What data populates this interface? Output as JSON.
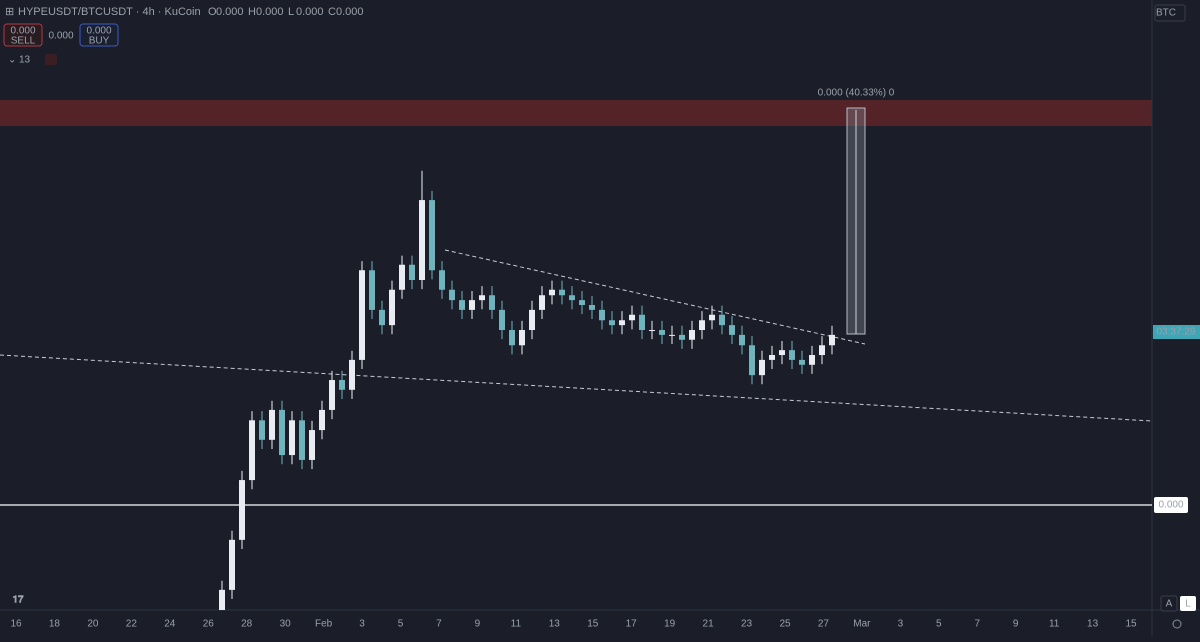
{
  "toolbar": {
    "symbol": "HYPEUSDT/BTCUSDT · 4h · KuCoin",
    "ohlc": [
      {
        "key": "O",
        "value": "0.000"
      },
      {
        "key": "H",
        "value": "0.000"
      },
      {
        "key": "L",
        "value": "0.000"
      },
      {
        "key": "C",
        "value": "0.000"
      }
    ],
    "sell_price": "0.000",
    "sell_label": "SELL",
    "spread": "0.000",
    "buy_price": "0.000",
    "buy_label": "BUY",
    "indicators_count": "13"
  },
  "price_scale": {
    "currency": "BTC",
    "countdown": "03:37:29",
    "line_price": "0.000",
    "auto": "A",
    "log": "L"
  },
  "measure_label": "0.000 (40.33%) 0",
  "chart_data": {
    "type": "candlestick",
    "up_color": "#e9edf3",
    "down_color": "#6fb3bd",
    "ylim": [
      0,
      100
    ],
    "xticks": [
      "16",
      "18",
      "20",
      "22",
      "24",
      "26",
      "28",
      "30",
      "Feb",
      "3",
      "5",
      "7",
      "9",
      "11",
      "13",
      "15",
      "17",
      "19",
      "21",
      "23",
      "25",
      "27",
      "Mar",
      "3",
      "5",
      "7",
      "9",
      "11",
      "13",
      "15"
    ],
    "open": [
      0.0,
      3.3,
      11.5,
      21.3,
      31.1,
      27.9,
      32.8,
      25.4,
      31.1,
      24.6,
      29.5,
      32.8,
      37.7,
      36.1,
      41.0,
      55.7,
      49.2,
      46.7,
      52.5,
      56.6,
      54.1,
      67.2,
      55.7,
      52.5,
      50.8,
      49.2,
      50.8,
      51.6,
      49.2,
      45.9,
      43.4,
      45.9,
      49.2,
      51.6,
      52.5,
      51.6,
      50.8,
      50.0,
      49.2,
      47.5,
      46.7,
      47.5,
      48.4,
      45.9,
      45.9,
      45.1,
      45.1,
      44.3,
      45.9,
      47.5,
      48.4,
      46.7,
      45.1,
      43.4,
      38.5,
      41.0,
      41.8,
      42.6,
      41.0,
      40.2,
      41.8,
      43.4
    ],
    "high": [
      4.8,
      13.0,
      22.8,
      32.6,
      32.6,
      34.3,
      34.3,
      32.6,
      32.6,
      31.0,
      34.3,
      39.2,
      39.2,
      42.5,
      57.2,
      57.2,
      50.7,
      54.0,
      58.1,
      58.1,
      72.0,
      68.7,
      57.2,
      54.0,
      52.3,
      52.3,
      53.1,
      53.1,
      50.7,
      47.4,
      47.4,
      50.7,
      53.1,
      54.0,
      54.0,
      53.1,
      52.3,
      51.5,
      50.7,
      49.0,
      49.0,
      49.9,
      49.9,
      47.4,
      47.4,
      46.6,
      46.6,
      47.4,
      49.0,
      49.9,
      49.9,
      48.2,
      46.6,
      44.9,
      42.5,
      43.3,
      44.1,
      44.1,
      42.5,
      43.3,
      44.9,
      46.6
    ],
    "low": [
      0.0,
      1.8,
      10.0,
      19.8,
      26.4,
      26.4,
      23.9,
      23.9,
      23.1,
      23.1,
      28.0,
      31.3,
      34.6,
      34.6,
      39.5,
      47.7,
      45.2,
      45.2,
      51.0,
      52.6,
      52.6,
      54.2,
      51.0,
      49.3,
      47.7,
      47.7,
      49.3,
      47.7,
      44.4,
      41.9,
      41.9,
      44.4,
      47.7,
      50.1,
      50.1,
      49.3,
      48.5,
      47.7,
      46.0,
      45.2,
      45.2,
      46.0,
      44.4,
      44.4,
      43.6,
      43.6,
      42.8,
      42.8,
      44.4,
      46.0,
      45.2,
      43.6,
      41.9,
      37.0,
      37.0,
      39.5,
      40.3,
      39.5,
      38.7,
      38.7,
      40.3,
      41.9
    ],
    "close": [
      3.3,
      11.5,
      21.3,
      31.1,
      27.9,
      32.8,
      25.4,
      31.1,
      24.6,
      29.5,
      32.8,
      37.7,
      36.1,
      41.0,
      55.7,
      49.2,
      46.7,
      52.5,
      56.6,
      54.1,
      67.2,
      55.7,
      52.5,
      50.8,
      49.2,
      50.8,
      51.6,
      49.2,
      45.9,
      43.4,
      45.9,
      49.2,
      51.6,
      52.5,
      51.6,
      50.8,
      50.0,
      49.2,
      47.5,
      46.7,
      47.5,
      48.4,
      45.9,
      45.9,
      45.1,
      45.1,
      44.3,
      45.9,
      47.5,
      48.4,
      46.7,
      45.1,
      43.4,
      38.5,
      41.0,
      41.8,
      42.6,
      41.0,
      40.2,
      41.8,
      43.4,
      45.1
    ]
  }
}
